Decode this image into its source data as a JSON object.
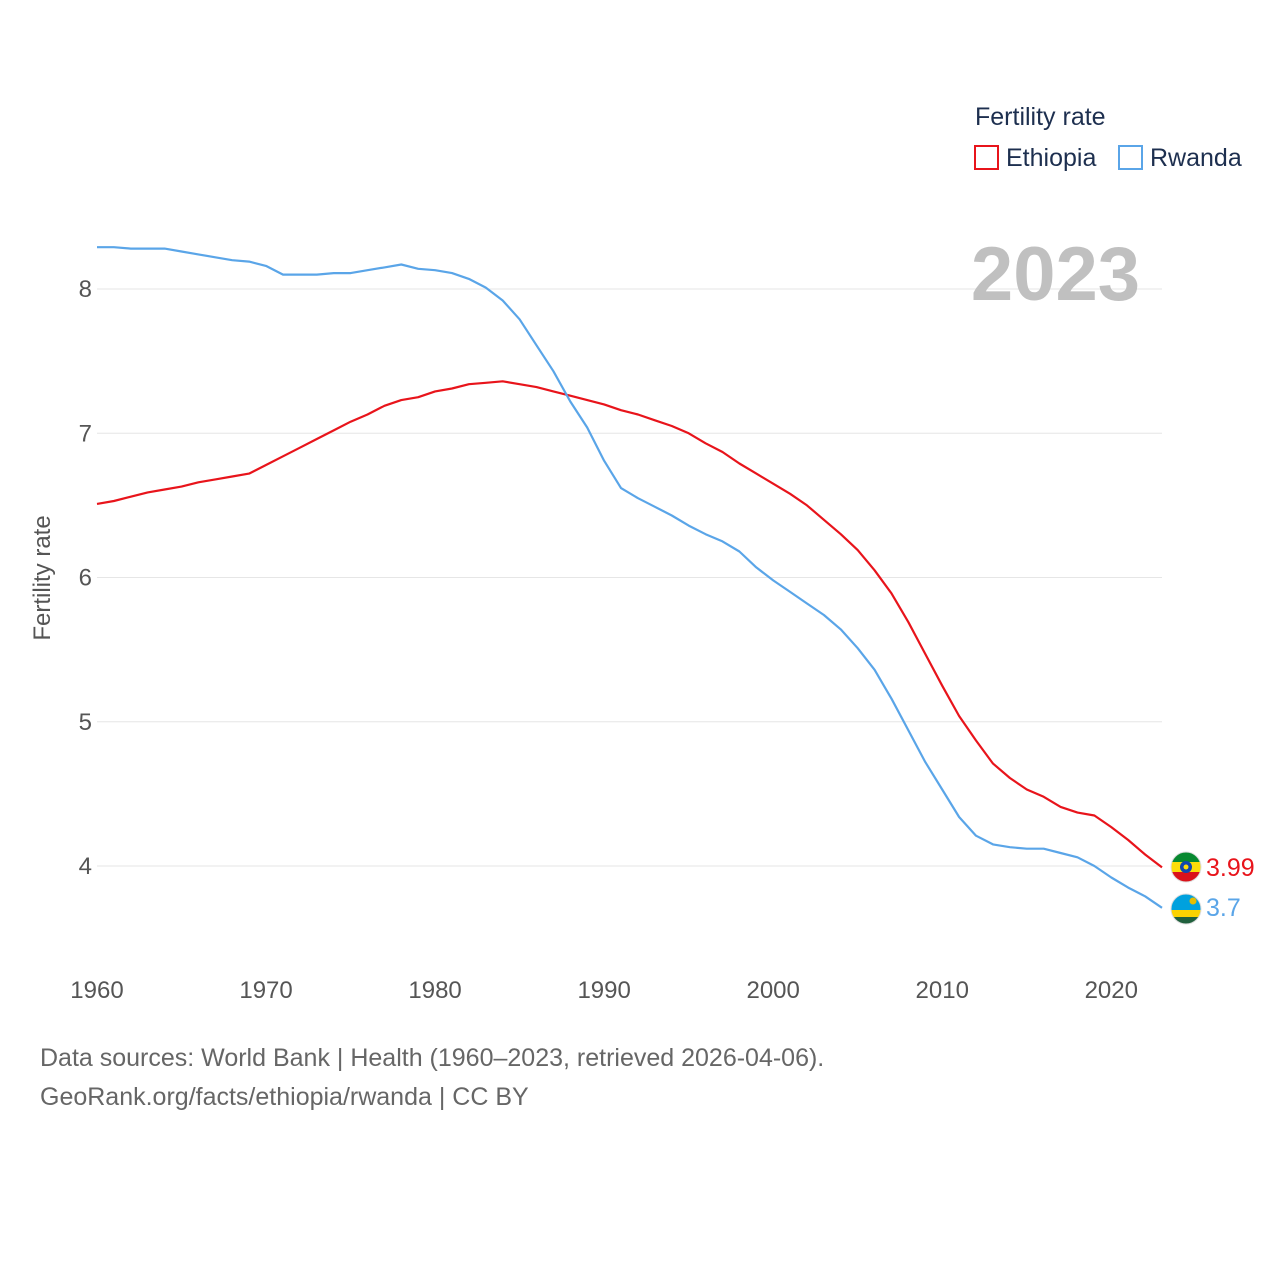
{
  "chart_data": {
    "type": "line",
    "title": "",
    "xlabel": "",
    "ylabel": "Fertility rate",
    "year_stamp": "2023",
    "x_ticks": [
      1960,
      1970,
      1980,
      1990,
      2000,
      2010,
      2020
    ],
    "y_ticks": [
      4,
      5,
      6,
      7,
      8
    ],
    "xlim": [
      1960,
      2023
    ],
    "ylim": [
      3.4,
      8.5
    ],
    "grid": true,
    "legend": {
      "title": "Fertility rate",
      "placement": "top-right",
      "entries": [
        "Ethiopia",
        "Rwanda"
      ]
    },
    "x": [
      1960,
      1961,
      1962,
      1963,
      1964,
      1965,
      1966,
      1967,
      1968,
      1969,
      1970,
      1971,
      1972,
      1973,
      1974,
      1975,
      1976,
      1977,
      1978,
      1979,
      1980,
      1981,
      1982,
      1983,
      1984,
      1985,
      1986,
      1987,
      1988,
      1989,
      1990,
      1991,
      1992,
      1993,
      1994,
      1995,
      1996,
      1997,
      1998,
      1999,
      2000,
      2001,
      2002,
      2003,
      2004,
      2005,
      2006,
      2007,
      2008,
      2009,
      2010,
      2011,
      2012,
      2013,
      2014,
      2015,
      2016,
      2017,
      2018,
      2019,
      2020,
      2021,
      2022,
      2023
    ],
    "series": [
      {
        "name": "Ethiopia",
        "color": "#e8141b",
        "end_label": "3.99",
        "values": [
          6.51,
          6.53,
          6.56,
          6.59,
          6.61,
          6.63,
          6.66,
          6.68,
          6.7,
          6.72,
          6.78,
          6.84,
          6.9,
          6.96,
          7.02,
          7.08,
          7.13,
          7.19,
          7.23,
          7.25,
          7.29,
          7.31,
          7.34,
          7.35,
          7.36,
          7.34,
          7.32,
          7.29,
          7.26,
          7.23,
          7.2,
          7.16,
          7.13,
          7.09,
          7.05,
          7.0,
          6.93,
          6.87,
          6.79,
          6.72,
          6.65,
          6.58,
          6.5,
          6.4,
          6.3,
          6.19,
          6.05,
          5.89,
          5.69,
          5.47,
          5.25,
          5.04,
          4.87,
          4.71,
          4.61,
          4.53,
          4.48,
          4.41,
          4.37,
          4.35,
          4.27,
          4.18,
          4.08,
          3.99
        ]
      },
      {
        "name": "Rwanda",
        "color": "#5aa5e8",
        "end_label": "3.7",
        "values": [
          8.29,
          8.29,
          8.28,
          8.28,
          8.28,
          8.26,
          8.24,
          8.22,
          8.2,
          8.19,
          8.16,
          8.1,
          8.1,
          8.1,
          8.11,
          8.11,
          8.13,
          8.15,
          8.17,
          8.14,
          8.13,
          8.11,
          8.07,
          8.01,
          7.92,
          7.79,
          7.61,
          7.43,
          7.22,
          7.04,
          6.81,
          6.62,
          6.55,
          6.49,
          6.43,
          6.36,
          6.3,
          6.25,
          6.18,
          6.07,
          5.98,
          5.9,
          5.82,
          5.74,
          5.64,
          5.51,
          5.36,
          5.16,
          4.94,
          4.72,
          4.53,
          4.34,
          4.21,
          4.15,
          4.13,
          4.12,
          4.12,
          4.09,
          4.06,
          4.0,
          3.92,
          3.85,
          3.79,
          3.71
        ]
      }
    ]
  },
  "footer": {
    "line1": "Data sources: World Bank | Health (1960–2023, retrieved 2026-04-06).",
    "line2": "GeoRank.org/facts/ethiopia/rwanda | CC BY"
  }
}
